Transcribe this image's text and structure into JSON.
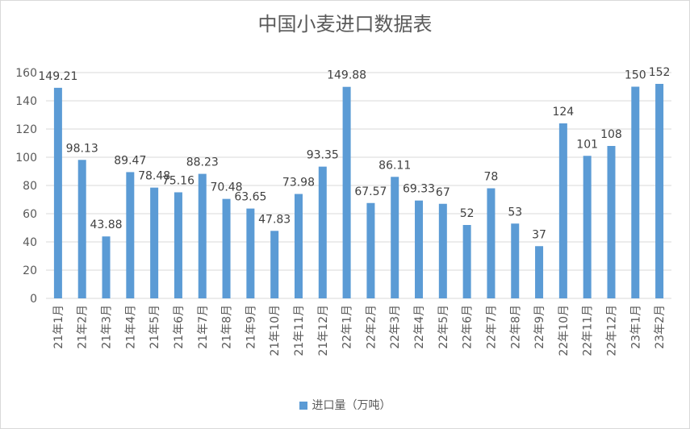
{
  "chart_data": {
    "type": "bar",
    "title": "中国小麦进口数据表",
    "categories": [
      "21年1月",
      "21年2月",
      "21年3月",
      "21年4月",
      "21年5月",
      "21年6月",
      "21年7月",
      "21年8月",
      "21年9月",
      "21年10月",
      "21年11月",
      "21年12月",
      "22年1月",
      "22年2月",
      "22年3月",
      "22年4月",
      "22年5月",
      "22年6月",
      "22年7月",
      "22年8月",
      "22年9月",
      "22年10月",
      "22年11月",
      "22年12月",
      "23年1月",
      "23年2月"
    ],
    "series": [
      {
        "name": "进口量（万吨）",
        "values": [
          149.21,
          98.13,
          43.88,
          89.47,
          78.48,
          75.16,
          88.23,
          70.48,
          63.65,
          47.83,
          73.98,
          93.35,
          149.88,
          67.57,
          86.11,
          69.33,
          67,
          52,
          78,
          53,
          37,
          124,
          101,
          108,
          150,
          152
        ],
        "data_labels": [
          "149.21",
          "98.13",
          "43.88",
          "89.47",
          "78.48",
          "75.16",
          "88.23",
          "70.48",
          "63.65",
          "47.83",
          "73.98",
          "93.35",
          "149.88",
          "67.57",
          "86.11",
          "69.33",
          "67",
          "52",
          "78",
          "53",
          "37",
          "124",
          "101",
          "108",
          "150",
          "152"
        ]
      }
    ],
    "ylim": [
      0,
      160
    ],
    "yticks": [
      "0",
      "20",
      "40",
      "60",
      "80",
      "100",
      "120",
      "140",
      "160"
    ],
    "grid": true,
    "legend": "bottom",
    "colors": {
      "bar": "#5b9bd5",
      "grid": "#d9d9d9",
      "text": "#595959"
    }
  }
}
